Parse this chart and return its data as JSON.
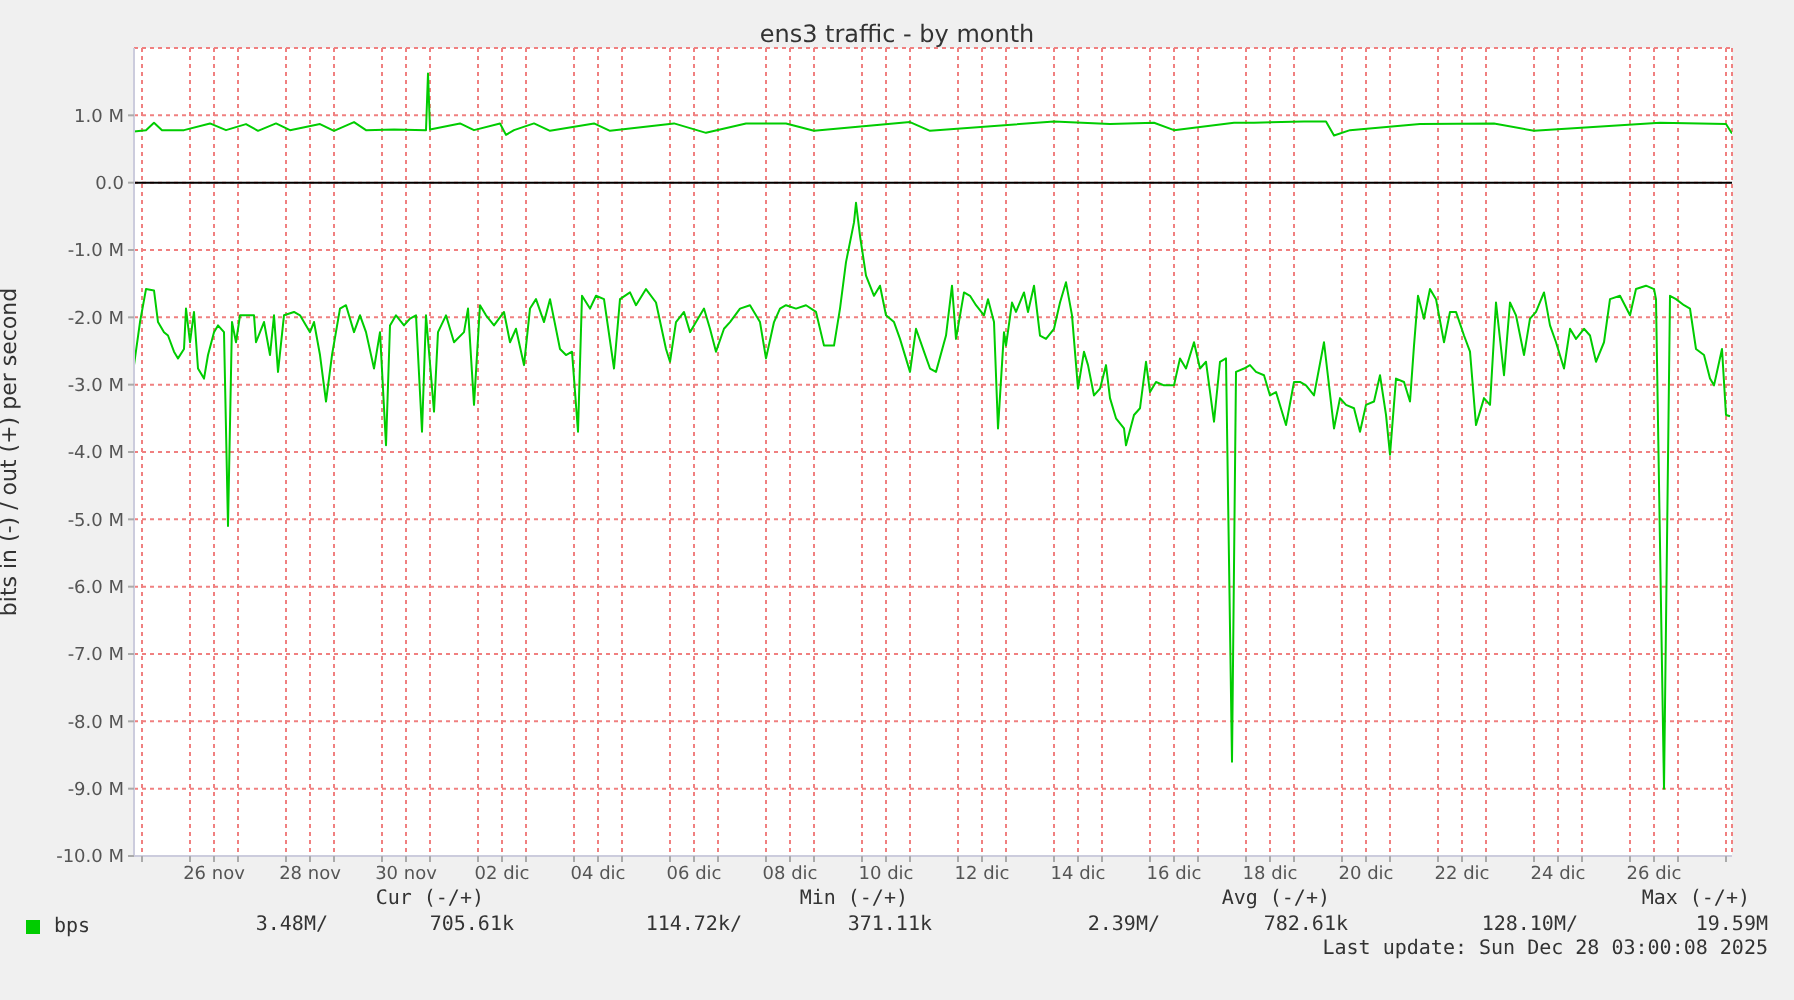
{
  "chart_data": {
    "type": "line",
    "title": "ens3 traffic - by month",
    "ylabel": "bits in (-) / out (+) per second",
    "xlim": [
      "--11-24T20:00",
      "--12-28T03:00"
    ],
    "xticks": [
      {
        "value": "--11-25",
        "label": null
      },
      {
        "value": "--11-26",
        "label": null
      },
      {
        "value": "--11-26T12:00",
        "label": "26 nov"
      },
      {
        "value": "--11-27",
        "label": null
      },
      {
        "value": "--11-28",
        "label": null
      },
      {
        "value": "--11-28T12:00",
        "label": "28 nov"
      },
      {
        "value": "--11-29",
        "label": null
      },
      {
        "value": "--11-30",
        "label": null
      },
      {
        "value": "--11-30T12:00",
        "label": "30 nov"
      },
      {
        "value": "--12-01",
        "label": null
      },
      {
        "value": "--12-02",
        "label": null
      },
      {
        "value": "--12-02T12:00",
        "label": "02 dic"
      },
      {
        "value": "--12-03",
        "label": null
      },
      {
        "value": "--12-04",
        "label": null
      },
      {
        "value": "--12-04T12:00",
        "label": "04 dic"
      },
      {
        "value": "--12-05",
        "label": null
      },
      {
        "value": "--12-06",
        "label": null
      },
      {
        "value": "--12-06T12:00",
        "label": "06 dic"
      },
      {
        "value": "--12-07",
        "label": null
      },
      {
        "value": "--12-08",
        "label": null
      },
      {
        "value": "--12-08T12:00",
        "label": "08 dic"
      },
      {
        "value": "--12-09",
        "label": null
      },
      {
        "value": "--12-10",
        "label": null
      },
      {
        "value": "--12-10T12:00",
        "label": "10 dic"
      },
      {
        "value": "--12-11",
        "label": null
      },
      {
        "value": "--12-12",
        "label": null
      },
      {
        "value": "--12-12T12:00",
        "label": "12 dic"
      },
      {
        "value": "--12-13",
        "label": null
      },
      {
        "value": "--12-14",
        "label": null
      },
      {
        "value": "--12-14T12:00",
        "label": "14 dic"
      },
      {
        "value": "--12-15",
        "label": null
      },
      {
        "value": "--12-16",
        "label": null
      },
      {
        "value": "--12-16T12:00",
        "label": "16 dic"
      },
      {
        "value": "--12-17",
        "label": null
      },
      {
        "value": "--12-18",
        "label": null
      },
      {
        "value": "--12-18T12:00",
        "label": "18 dic"
      },
      {
        "value": "--12-19",
        "label": null
      },
      {
        "value": "--12-20",
        "label": null
      },
      {
        "value": "--12-20T12:00",
        "label": "20 dic"
      },
      {
        "value": "--12-21",
        "label": null
      },
      {
        "value": "--12-22",
        "label": null
      },
      {
        "value": "--12-22T12:00",
        "label": "22 dic"
      },
      {
        "value": "--12-23",
        "label": null
      },
      {
        "value": "--12-24",
        "label": null
      },
      {
        "value": "--12-24T12:00",
        "label": "24 dic"
      },
      {
        "value": "--12-25",
        "label": null
      },
      {
        "value": "--12-26",
        "label": null
      },
      {
        "value": "--12-26T12:00",
        "label": "26 dic"
      },
      {
        "value": "--12-27",
        "label": null
      },
      {
        "value": "--12-28",
        "label": null
      }
    ],
    "ylim": [
      -10,
      2
    ],
    "yticks": [
      {
        "value": 1,
        "label": "1.0 M"
      },
      {
        "value": 0,
        "label": "0.0"
      },
      {
        "value": -1,
        "label": "-1.0 M"
      },
      {
        "value": -2,
        "label": "-2.0 M"
      },
      {
        "value": -3,
        "label": "-3.0 M"
      },
      {
        "value": -4,
        "label": "-4.0 M"
      },
      {
        "value": -5,
        "label": "-5.0 M"
      },
      {
        "value": -6,
        "label": "-6.0 M"
      },
      {
        "value": -7,
        "label": "-7.0 M"
      },
      {
        "value": -8,
        "label": "-8.0 M"
      },
      {
        "value": -9,
        "label": "-9.0 M"
      },
      {
        "value": -10,
        "label": "-10.0 M"
      }
    ],
    "grid": true,
    "legend": "bottom",
    "ref_lines": [
      {
        "axis": "y",
        "value": 0,
        "color": "#000000"
      }
    ],
    "series": [
      {
        "name": "bps",
        "color": "#00cc00",
        "x": [
          "--11-24T20:00",
          "--11-24T23:00",
          "--11-25T02:00",
          "--11-25T06:00",
          "--11-25T08:00",
          "--11-25T11:00",
          "--11-25T13:00",
          "--11-25T16:00",
          "--11-25T18:00",
          "--11-25T21:00",
          "--11-25T22:00",
          "--11-26T00:00",
          "--11-26T02:00",
          "--11-26T04:00",
          "--11-26T07:00",
          "--11-26T09:00",
          "--11-26T12:00",
          "--11-26T14:00",
          "--11-26T17:00",
          "--11-26T19:00",
          "--11-26T21:00",
          "--11-26T23:00",
          "--11-27T01:00",
          "--11-27T08:00",
          "--11-27T09:00",
          "--11-27T13:00",
          "--11-27T16:00",
          "--11-27T18:00",
          "--11-27T20:00",
          "--11-27T23:00",
          "--11-28T04:00",
          "--11-28T07:00",
          "--11-28T12:00",
          "--11-28T14:00",
          "--11-28T17:00",
          "--11-28T20:00",
          "--11-28T23:00",
          "--11-29T03:00",
          "--11-29T06:00",
          "--11-29T10:00",
          "--11-29T13:00",
          "--11-29T16:00",
          "--11-29T20:00",
          "--11-29T23:00",
          "--11-30T02:00",
          "--11-30T04:00",
          "--11-30T07:00",
          "--11-30T11:00",
          "--11-30T14:00",
          "--11-30T17:00",
          "--11-30T20:00",
          "--11-30T22:00",
          "--12-01T02:00",
          "--12-01T04:00",
          "--12-01T08:00",
          "--12-01T12:00",
          "--12-01T17:00",
          "--12-01T19:00",
          "--12-01T22:00",
          "--12-02T01:00",
          "--12-02T04:00",
          "--12-02T08:00",
          "--12-02T13:00",
          "--12-02T16:00",
          "--12-02T19:00",
          "--12-02T23:00",
          "--12-03T02:00",
          "--12-03T05:00",
          "--12-03T09:00",
          "--12-03T12:00",
          "--12-03T17:00",
          "--12-03T20:00",
          "--12-03T23:00",
          "--12-04T02:00",
          "--12-04T04:00",
          "--12-04T08:00",
          "--12-04T11:00",
          "--12-04T15:00",
          "--12-04T20:00",
          "--12-04T23:00",
          "--12-05T04:00",
          "--12-05T07:00",
          "--12-05T12:00",
          "--12-05T17:00",
          "--12-05T22:00",
          "--12-06T00:00",
          "--12-06T03:00",
          "--12-06T07:00",
          "--12-06T10:00",
          "--12-06T13:00",
          "--12-06T17:00",
          "--12-06T20:00",
          "--12-06T23:00",
          "--12-07T03:00",
          "--12-07T06:00",
          "--12-07T11:00",
          "--12-07T16:00",
          "--12-07T21:00",
          "--12-08T00:00",
          "--12-08T04:00",
          "--12-08T07:00",
          "--12-08T10:00",
          "--12-08T15:00",
          "--12-08T20:00",
          "--12-09T01:00",
          "--12-09T05:00",
          "--12-09T10:00",
          "--12-09T13:00",
          "--12-09T16:00",
          "--12-09T20:00",
          "--12-09T21:00",
          "--12-09T23:00",
          "--12-10T02:00",
          "--12-10T06:00",
          "--12-10T09:00",
          "--12-10T12:00",
          "--12-10T16:00",
          "--12-10T19:00",
          "--12-11T00:00",
          "--12-11T03:00",
          "--12-11T07:00",
          "--12-11T10:00",
          "--12-11T13:00",
          "--12-11T18:00",
          "--12-11T21:00",
          "--12-11T23:00",
          "--12-12T03:00",
          "--12-12T06:00",
          "--12-12T09:00",
          "--12-12T13:00",
          "--12-12T15:00",
          "--12-12T18:00",
          "--12-12T20:00",
          "--12-12T23:00",
          "--12-13T00:00",
          "--12-13T03:00",
          "--12-13T05:00",
          "--12-13T09:00",
          "--12-13T11:00",
          "--12-13T14:00",
          "--12-13T17:00",
          "--12-13T20:00",
          "--12-14T00:00",
          "--12-14T03:00",
          "--12-14T06:00",
          "--12-14T09:00",
          "--12-14T12:00",
          "--12-14T15:00",
          "--12-14T17:00",
          "--12-14T20:00",
          "--12-14T23:00",
          "--12-15T02:00",
          "--12-15T04:00",
          "--12-15T07:00",
          "--12-15T11:00",
          "--12-15T12:00",
          "--12-15T16:00",
          "--12-15T19:00",
          "--12-15T22:00",
          "--12-16T00:00",
          "--12-16T03:00",
          "--12-16T07:00",
          "--12-16T12:00",
          "--12-16T15:00",
          "--12-16T18:00",
          "--12-16T22:00",
          "--12-17T01:00",
          "--12-17T04:00",
          "--12-17T08:00",
          "--12-17T11:00",
          "--12-17T14:00",
          "--12-17T17:00",
          "--12-17T19:00",
          "--12-17T23:00",
          "--12-18T02:00",
          "--12-18T05:00",
          "--12-18T09:00",
          "--12-18T12:00",
          "--12-18T15:00",
          "--12-18T20:00",
          "--12-19T00:00",
          "--12-19T03:00",
          "--12-19T06:00",
          "--12-19T10:00",
          "--12-19T15:00",
          "--12-19T20:00",
          "--12-19T23:00",
          "--12-20T02:00",
          "--12-20T06:00",
          "--12-20T09:00",
          "--12-20T12:00",
          "--12-20T16:00",
          "--12-20T19:00",
          "--12-20T22:00",
          "--12-21T00:00",
          "--12-21T03:00",
          "--12-21T07:00",
          "--12-21T10:00",
          "--12-21T12:00",
          "--12-21T14:00",
          "--12-21T17:00",
          "--12-21T20:00",
          "--12-21T23:00",
          "--12-22T03:00",
          "--12-22T06:00",
          "--12-22T09:00",
          "--12-22T13:00",
          "--12-22T16:00",
          "--12-22T19:00",
          "--12-22T23:00",
          "--12-23T02:00",
          "--12-23T05:00",
          "--12-23T09:00",
          "--12-23T12:00",
          "--12-23T15:00",
          "--12-23T19:00",
          "--12-23T22:00",
          "--12-24T01:00",
          "--12-24T05:00",
          "--12-24T08:00",
          "--12-24T11:00",
          "--12-24T15:00",
          "--12-24T18:00",
          "--12-24T21:00",
          "--12-25T01:00",
          "--12-25T04:00",
          "--12-25T07:00",
          "--12-25T11:00",
          "--12-25T14:00",
          "--12-25T19:00",
          "--12-26T00:00",
          "--12-26T03:00",
          "--12-26T08:00",
          "--12-26T12:00",
          "--12-26T13:00",
          "--12-26T17:00",
          "--12-26T20:00",
          "--12-26T23:00",
          "--12-27T03:00",
          "--12-27T06:00",
          "--12-27T09:00",
          "--12-27T13:00",
          "--12-27T16:00",
          "--12-27T18:00",
          "--12-27T22:00",
          "--12-28T00:00",
          "--12-28T02:00"
        ],
        "values": [
          -2.71,
          -2.07,
          -1.58,
          -1.6,
          -2.07,
          -2.22,
          -2.27,
          -2.51,
          -2.61,
          -2.47,
          -1.87,
          -2.37,
          -1.92,
          -2.76,
          -2.91,
          -2.56,
          -2.22,
          -2.12,
          -2.22,
          -5.1,
          -2.07,
          -2.37,
          -1.97,
          -1.97,
          -2.37,
          -2.07,
          -2.56,
          -1.97,
          -2.81,
          -1.97,
          -1.92,
          -1.97,
          -2.22,
          -2.07,
          -2.56,
          -3.25,
          -2.56,
          -1.87,
          -1.82,
          -2.22,
          -1.97,
          -2.22,
          -2.76,
          -2.22,
          -3.9,
          -2.12,
          -1.97,
          -2.12,
          -2.02,
          -1.97,
          -3.7,
          -1.97,
          -3.4,
          -2.22,
          -1.97,
          -2.37,
          -2.22,
          -1.87,
          -3.3,
          -1.82,
          -1.97,
          -2.12,
          -1.92,
          -2.37,
          -2.17,
          -2.71,
          -1.87,
          -1.73,
          -2.07,
          -1.73,
          -2.47,
          -2.56,
          -2.51,
          -3.7,
          -1.68,
          -1.87,
          -1.68,
          -1.73,
          -2.76,
          -1.73,
          -1.63,
          -1.82,
          -1.58,
          -1.78,
          -2.47,
          -2.66,
          -2.07,
          -1.92,
          -2.22,
          -2.07,
          -1.87,
          -2.17,
          -2.51,
          -2.17,
          -2.07,
          -1.87,
          -1.82,
          -2.07,
          -2.61,
          -2.07,
          -1.87,
          -1.82,
          -1.87,
          -1.82,
          -1.92,
          -2.42,
          -2.42,
          -1.87,
          -1.18,
          -0.59,
          -0.3,
          -0.79,
          -1.38,
          -1.68,
          -1.53,
          -1.97,
          -2.07,
          -2.32,
          -2.81,
          -2.17,
          -2.51,
          -2.76,
          -2.81,
          -2.27,
          -1.53,
          -2.32,
          -1.63,
          -1.68,
          -1.82,
          -1.97,
          -1.73,
          -2.07,
          -3.65,
          -2.22,
          -2.42,
          -1.78,
          -1.92,
          -1.63,
          -1.92,
          -1.53,
          -2.27,
          -2.32,
          -2.17,
          -1.78,
          -1.48,
          -1.97,
          -3.06,
          -2.51,
          -2.71,
          -3.16,
          -3.06,
          -2.71,
          -3.2,
          -3.5,
          -3.65,
          -3.9,
          -3.45,
          -3.35,
          -2.66,
          -3.11,
          -2.96,
          -3.01,
          -3.01,
          -2.61,
          -2.76,
          -2.37,
          -2.76,
          -2.66,
          -3.55,
          -2.66,
          -2.61,
          -8.6,
          -2.81,
          -2.76,
          -2.71,
          -2.81,
          -2.86,
          -3.16,
          -3.11,
          -3.6,
          -2.96,
          -2.96,
          -3.01,
          -3.16,
          -2.37,
          -3.65,
          -3.2,
          -3.3,
          -3.35,
          -3.7,
          -3.3,
          -3.25,
          -2.86,
          -3.45,
          -4.04,
          -2.91,
          -2.96,
          -3.25,
          -2.42,
          -1.68,
          -2.02,
          -1.58,
          -1.73,
          -2.37,
          -1.92,
          -1.92,
          -2.27,
          -2.51,
          -3.6,
          -3.2,
          -3.3,
          -1.78,
          -2.86,
          -1.78,
          -1.97,
          -2.56,
          -2.02,
          -1.92,
          -1.63,
          -2.12,
          -2.37,
          -2.76,
          -2.17,
          -2.32,
          -2.17,
          -2.27,
          -2.66,
          -2.37,
          -1.73,
          -1.68,
          -1.97,
          -1.58,
          -1.53,
          -1.58,
          -1.73,
          -9.0,
          -1.68,
          -1.73,
          -1.82,
          -1.87,
          -2.47,
          -2.56,
          -2.91,
          -3.01,
          -2.47,
          -3.45,
          -3.47
        ]
      },
      {
        "color": "#00cc00",
        "x": [
          "--11-24T20:00",
          "--11-25T02:00",
          "--11-25T06:00",
          "--11-25T10:00",
          "--11-25T21:00",
          "--11-26T10:00",
          "--11-26T18:00",
          "--11-27T04:00",
          "--11-27T10:00",
          "--11-27T19:00",
          "--11-28T02:00",
          "--11-28T17:00",
          "--11-29T00:00",
          "--11-29T10:00",
          "--11-29T16:00",
          "--11-30T06:00",
          "--11-30T22:00",
          "--11-30T23:00",
          "--12-01T00:00",
          "--12-01T15:00",
          "--12-01T22:00",
          "--12-02T11:00",
          "--12-02T14:00",
          "--12-02T18:00",
          "--12-03T04:00",
          "--12-03T12:00",
          "--12-04T10:00",
          "--12-04T18:00",
          "--12-06T02:00",
          "--12-06T18:00",
          "--12-07T14:00",
          "--12-08T10:00",
          "--12-09T00:00",
          "--12-11T00:00",
          "--12-11T10:00",
          "--12-14T00:00",
          "--12-15T04:00",
          "--12-16T02:00",
          "--12-16T12:00",
          "--12-17T18:00",
          "--12-18T04:00",
          "--12-19T05:00",
          "--12-19T16:00",
          "--12-19T20:00",
          "--12-20T04:00",
          "--12-21T15:00",
          "--12-23T04:00",
          "--12-24T00:00",
          "--12-26T15:00",
          "--12-28T00:00",
          "--12-28T03:00"
        ],
        "values": [
          0.76,
          0.78,
          0.89,
          0.78,
          0.78,
          0.88,
          0.78,
          0.87,
          0.77,
          0.88,
          0.78,
          0.87,
          0.77,
          0.9,
          0.78,
          0.79,
          0.78,
          1.62,
          0.79,
          0.88,
          0.78,
          0.88,
          0.71,
          0.78,
          0.88,
          0.77,
          0.88,
          0.77,
          0.88,
          0.74,
          0.88,
          0.88,
          0.77,
          0.9,
          0.77,
          0.91,
          0.87,
          0.89,
          0.78,
          0.89,
          0.89,
          0.91,
          0.91,
          0.7,
          0.78,
          0.87,
          0.88,
          0.77,
          0.89,
          0.87,
          0.73
        ]
      }
    ],
    "annotations": [
      "Cur (-/+)",
      "Min (-/+)",
      "Avg (-/+)",
      "Max (-/+)",
      "3.48M/",
      "705.61k",
      "114.72k/",
      "371.11k",
      "2.39M/",
      "782.61k",
      "128.10M/",
      "19.59M",
      "Last update: Sun Dec 28 03:00:08 2025"
    ]
  }
}
